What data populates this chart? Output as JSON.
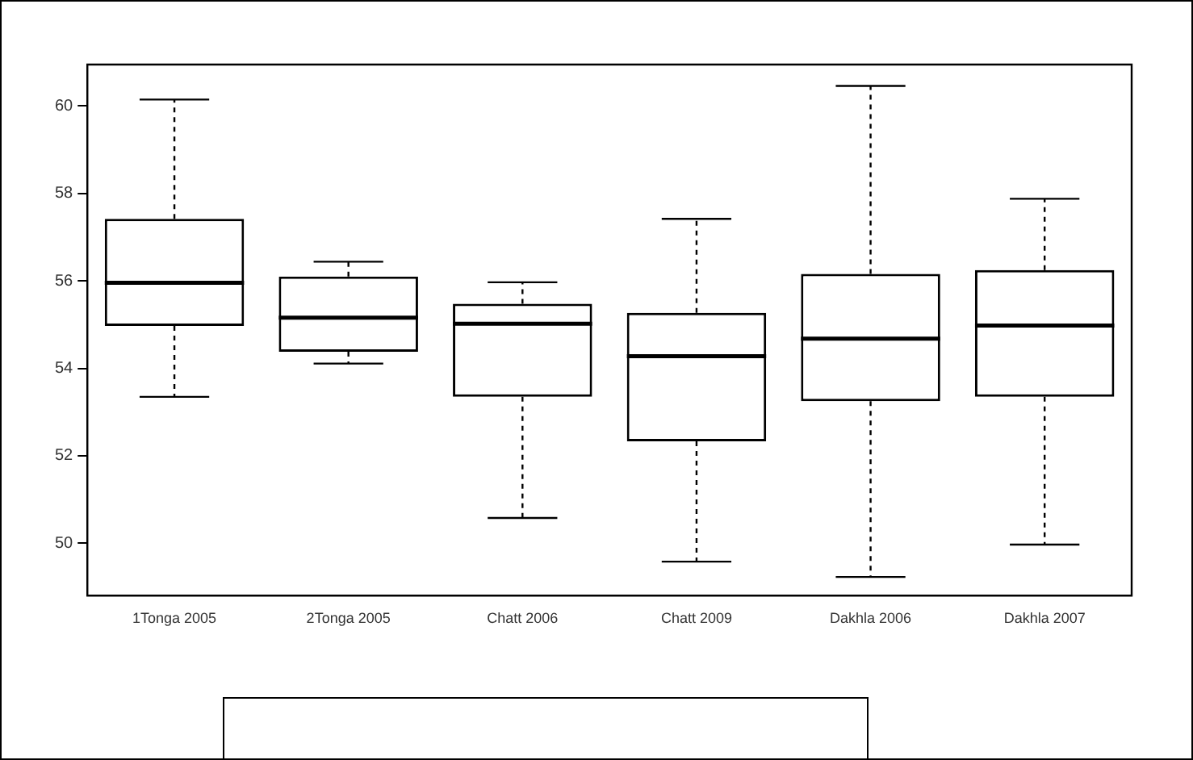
{
  "chart_data": {
    "type": "box",
    "categories": [
      "1Tonga 2005",
      "2Tonga 2005",
      "Chatt 2006",
      "Chatt 2009",
      "Dakhla 2006",
      "Dakhla 2007"
    ],
    "boxes": [
      {
        "low": 53.35,
        "q1": 54.97,
        "median": 55.96,
        "q3": 57.42,
        "high": 60.15
      },
      {
        "low": 54.11,
        "q1": 54.38,
        "median": 55.16,
        "q3": 56.1,
        "high": 56.44
      },
      {
        "low": 50.58,
        "q1": 53.35,
        "median": 55.02,
        "q3": 55.48,
        "high": 55.97
      },
      {
        "low": 49.58,
        "q1": 52.33,
        "median": 54.28,
        "q3": 55.27,
        "high": 57.42
      },
      {
        "low": 49.23,
        "q1": 53.25,
        "median": 54.68,
        "q3": 56.16,
        "high": 60.46
      },
      {
        "low": 49.97,
        "q1": 53.35,
        "median": 54.98,
        "q3": 56.25,
        "high": 57.88
      }
    ],
    "color": "#000000",
    "ylim": [
      48.8,
      60.95
    ],
    "yticks": [
      50,
      52,
      54,
      56,
      58,
      60
    ],
    "grid": false,
    "legend": false
  }
}
